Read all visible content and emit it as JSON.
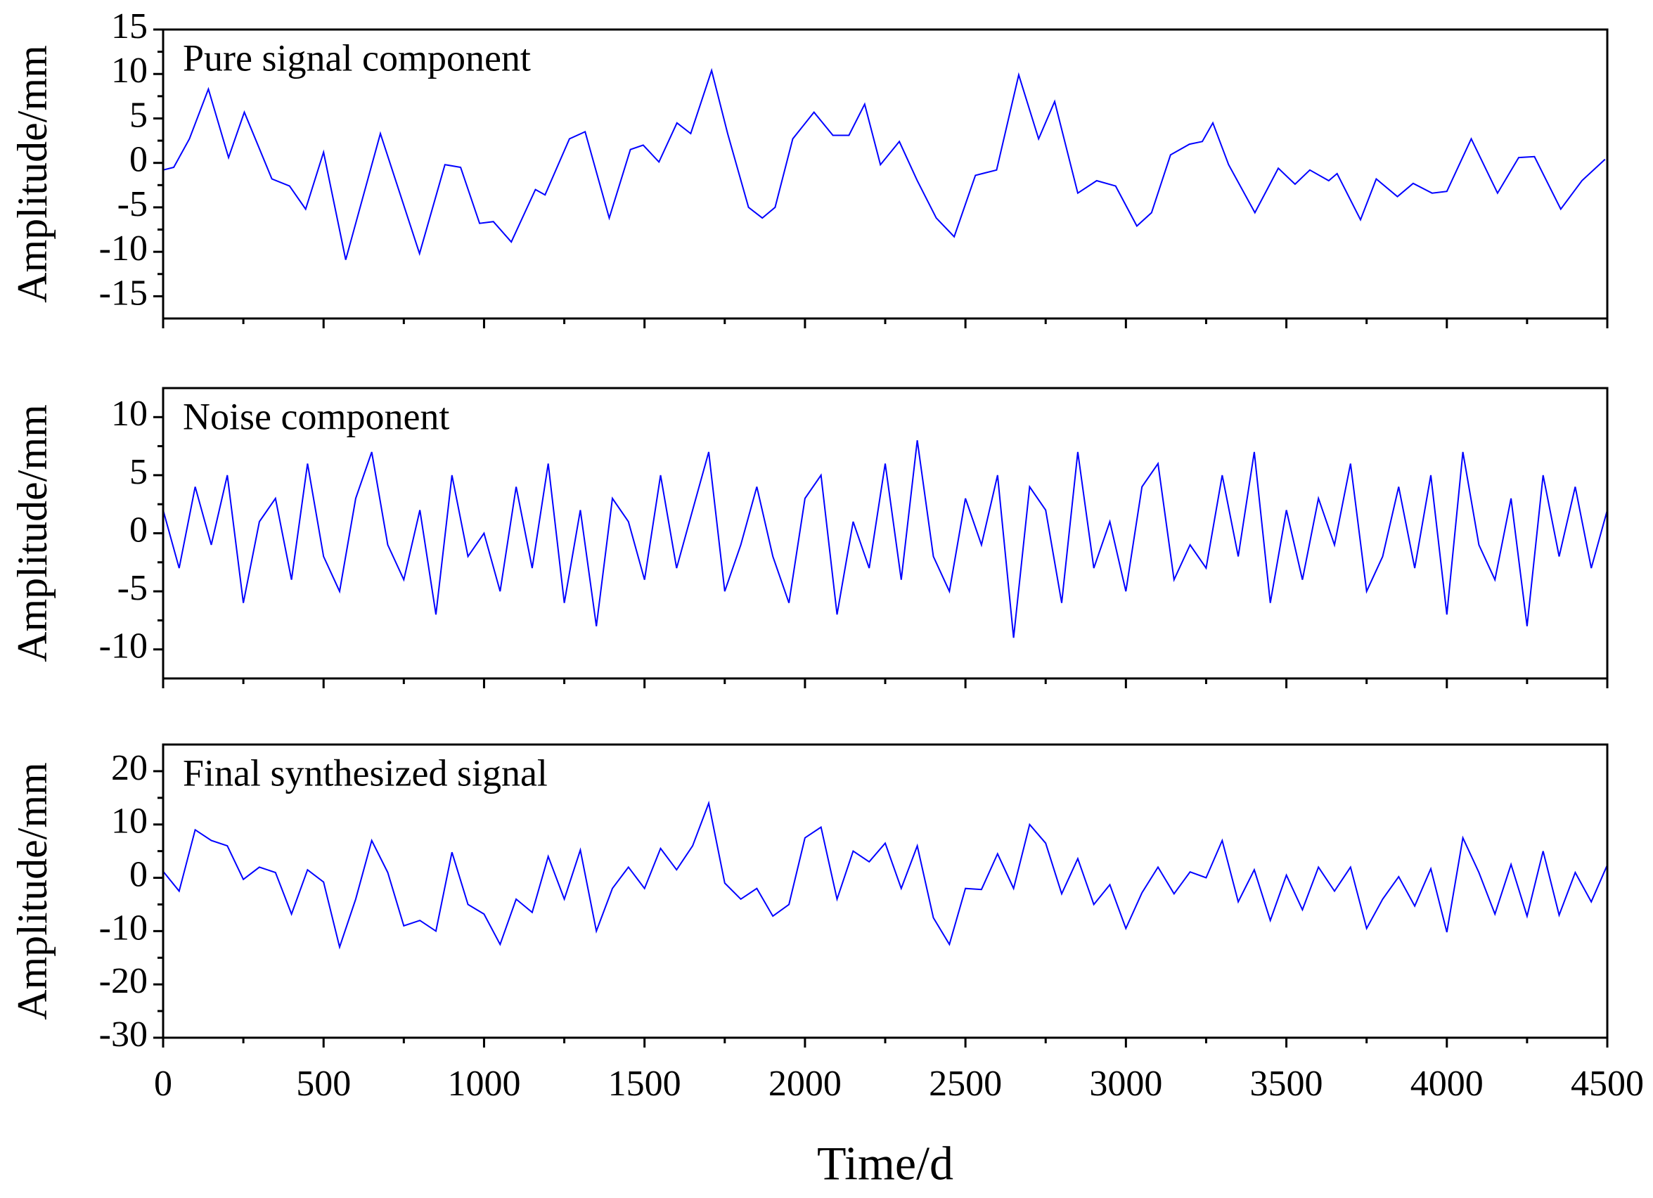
{
  "chart_data": [
    {
      "type": "line",
      "annotation": "Pure signal component",
      "ylabel": "Amplitude/mm",
      "color": "#0000ff",
      "x": [
        0,
        33,
        82,
        141,
        204,
        253,
        339,
        394,
        444,
        500,
        569,
        677,
        799,
        878,
        927,
        986,
        1029,
        1085,
        1160,
        1190,
        1266,
        1315,
        1390,
        1456,
        1496,
        1545,
        1601,
        1644,
        1709,
        1759,
        1824,
        1867,
        1907,
        1962,
        2028,
        2087,
        2137,
        2186,
        2235,
        2294,
        2350,
        2409,
        2465,
        2531,
        2597,
        2666,
        2728,
        2778,
        2850,
        2909,
        2968,
        3034,
        3080,
        3139,
        3198,
        3238,
        3271,
        3320,
        3402,
        3475,
        3527,
        3573,
        3632,
        3658,
        3731,
        3780,
        3846,
        3895,
        3954,
        4000,
        4076,
        4158,
        4224,
        4273,
        4355,
        4421,
        4493
      ],
      "values": [
        -0.8,
        -0.5,
        2.7,
        8.3,
        0.6,
        5.7,
        -1.8,
        -2.6,
        -5.2,
        1.2,
        -10.9,
        3.3,
        -10.2,
        -0.2,
        -0.5,
        -6.8,
        -6.6,
        -8.9,
        -3,
        -3.6,
        2.7,
        3.5,
        -6.2,
        1.5,
        2,
        0.1,
        4.5,
        3.3,
        10.4,
        3.3,
        -5,
        -6.2,
        -5,
        2.7,
        5.7,
        3.1,
        3.1,
        6.6,
        -0.2,
        2.4,
        -2,
        -6.2,
        -8.3,
        -1.4,
        -0.8,
        9.9,
        2.7,
        6.9,
        -3.4,
        -2,
        -2.6,
        -7.1,
        -5.6,
        0.9,
        2.1,
        2.4,
        4.5,
        -0.2,
        -5.6,
        -0.6,
        -2.4,
        -0.8,
        -2,
        -1.2,
        -6.4,
        -1.8,
        -3.8,
        -2.3,
        -3.4,
        -3.2,
        2.7,
        -3.4,
        0.6,
        0.7,
        -5.2,
        -2,
        0.4
      ],
      "xlim": [
        0,
        4500
      ],
      "ylim": [
        -17.5,
        15
      ],
      "yticks": [
        -15,
        -10,
        -5,
        0,
        5,
        10,
        15
      ]
    },
    {
      "type": "line",
      "annotation": "Noise component",
      "ylabel": "Amplitude/mm",
      "color": "#0000ff",
      "x": [
        0,
        50,
        100,
        150,
        200,
        250,
        300,
        350,
        400,
        450,
        500,
        550,
        600,
        650,
        700,
        750,
        800,
        850,
        900,
        950,
        1000,
        1050,
        1100,
        1150,
        1200,
        1250,
        1300,
        1350,
        1400,
        1450,
        1500,
        1550,
        1600,
        1650,
        1700,
        1750,
        1800,
        1850,
        1900,
        1950,
        2000,
        2050,
        2100,
        2150,
        2200,
        2250,
        2300,
        2350,
        2400,
        2450,
        2500,
        2550,
        2600,
        2650,
        2700,
        2750,
        2800,
        2850,
        2900,
        2950,
        3000,
        3050,
        3100,
        3150,
        3200,
        3250,
        3300,
        3350,
        3400,
        3450,
        3500,
        3550,
        3600,
        3650,
        3700,
        3750,
        3800,
        3850,
        3900,
        3950,
        4000,
        4050,
        4100,
        4150,
        4200,
        4250,
        4300,
        4350,
        4400,
        4450,
        4500
      ],
      "values": [
        2,
        -3,
        4,
        -1,
        5,
        -6,
        1,
        3,
        -4,
        6,
        -2,
        -5,
        3,
        7,
        -1,
        -4,
        2,
        -7,
        5,
        -2,
        0,
        -5,
        4,
        -3,
        6,
        -6,
        2,
        -8,
        3,
        1,
        -4,
        5,
        -3,
        2,
        7,
        -5,
        -1,
        4,
        -2,
        -6,
        3,
        5,
        -7,
        1,
        -3,
        6,
        -4,
        8,
        -2,
        -5,
        3,
        -1,
        5,
        -9,
        4,
        2,
        -6,
        7,
        -3,
        1,
        -5,
        4,
        6,
        -4,
        -1,
        -3,
        5,
        -2,
        7,
        -6,
        2,
        -4,
        3,
        -1,
        6,
        -5,
        -2,
        4,
        -3,
        5,
        -7,
        7,
        -1,
        -4,
        3,
        -8,
        5,
        -2,
        4,
        -3,
        2
      ],
      "xlim": [
        0,
        4500
      ],
      "ylim": [
        -12.5,
        12.5
      ],
      "yticks": [
        -10,
        -5,
        0,
        5,
        10
      ]
    },
    {
      "type": "line",
      "annotation": "Final synthesized signal",
      "ylabel": "Amplitude/mm",
      "xlabel": "Time/d",
      "color": "#0000ff",
      "x": [
        0,
        50,
        100,
        150,
        200,
        250,
        300,
        350,
        400,
        450,
        500,
        550,
        600,
        650,
        700,
        750,
        800,
        850,
        900,
        950,
        1000,
        1050,
        1100,
        1150,
        1200,
        1250,
        1300,
        1350,
        1400,
        1450,
        1500,
        1550,
        1600,
        1650,
        1700,
        1750,
        1800,
        1850,
        1900,
        1950,
        2000,
        2050,
        2100,
        2150,
        2200,
        2250,
        2300,
        2350,
        2400,
        2450,
        2500,
        2550,
        2600,
        2650,
        2700,
        2750,
        2800,
        2850,
        2900,
        2950,
        3000,
        3050,
        3100,
        3150,
        3200,
        3250,
        3300,
        3350,
        3400,
        3450,
        3500,
        3550,
        3600,
        3650,
        3700,
        3750,
        3800,
        3850,
        3900,
        3950,
        4000,
        4050,
        4100,
        4150,
        4200,
        4250,
        4300,
        4350,
        4400,
        4450,
        4500
      ],
      "values": [
        1.2,
        -2.5,
        9,
        7,
        6,
        -0.3,
        2,
        1,
        -6.8,
        1.5,
        -0.8,
        -13,
        -4,
        7,
        1,
        -9,
        -8,
        -10,
        4.8,
        -5,
        -6.8,
        -12.5,
        -4,
        -6.5,
        4,
        -4,
        5.2,
        -10,
        -2,
        2,
        -2,
        5.5,
        1.5,
        6,
        14,
        -1,
        -4,
        -2,
        -7.2,
        -5,
        7.5,
        9.5,
        -4,
        5,
        3,
        6.5,
        -2,
        6,
        -7.5,
        -12.5,
        -2,
        -2.2,
        4.5,
        -2,
        10,
        6.5,
        -3,
        3.6,
        -5,
        -1.3,
        -9.5,
        -2.8,
        2,
        -3,
        1.1,
        0,
        7,
        -4.5,
        1.5,
        -8,
        0.5,
        -6,
        2,
        -2.5,
        2,
        -9.5,
        -4,
        0.2,
        -5.3,
        1.7,
        -10.2,
        7.5,
        1,
        -6.8,
        2.5,
        -7.2,
        5,
        -7,
        1,
        -4.5,
        2.4
      ],
      "xlim": [
        0,
        4500
      ],
      "ylim": [
        -30,
        25
      ],
      "yticks": [
        -30,
        -20,
        -10,
        0,
        10,
        20
      ],
      "xticks": [
        0,
        500,
        1000,
        1500,
        2000,
        2500,
        3000,
        3500,
        4000,
        4500
      ]
    }
  ]
}
